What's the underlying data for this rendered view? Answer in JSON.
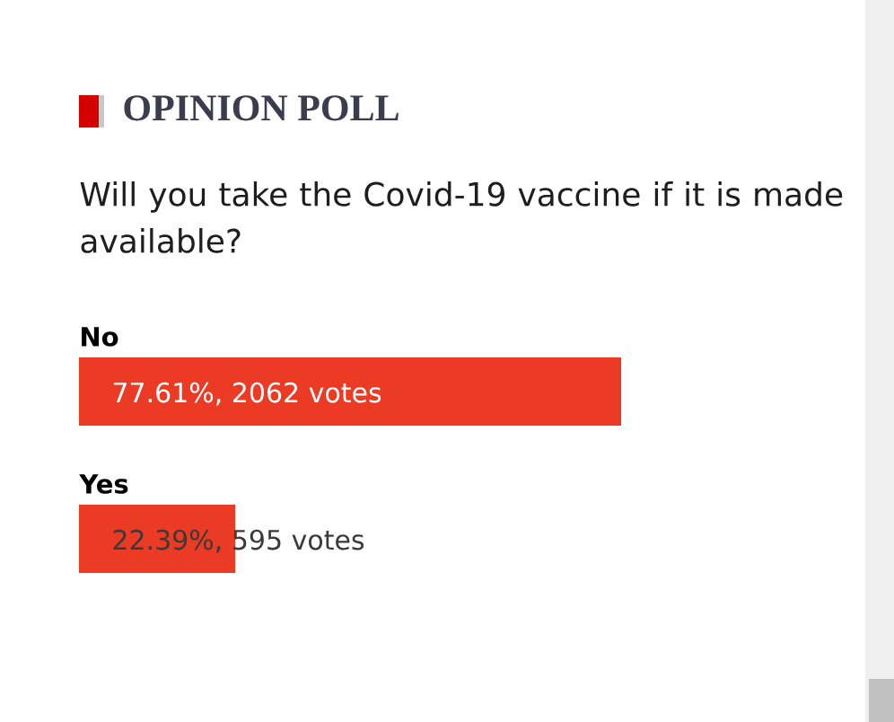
{
  "chart_data": {
    "type": "bar",
    "orientation": "horizontal",
    "title": "OPINION POLL",
    "subtitle": "Will you take the Covid-19 vaccine if it is made available?",
    "categories": [
      "No",
      "Yes"
    ],
    "values": [
      77.61,
      22.39
    ],
    "value_labels": [
      "77.61%, 2062 votes",
      "22.39%, 595 votes"
    ],
    "color": "#ec3b25"
  }
}
